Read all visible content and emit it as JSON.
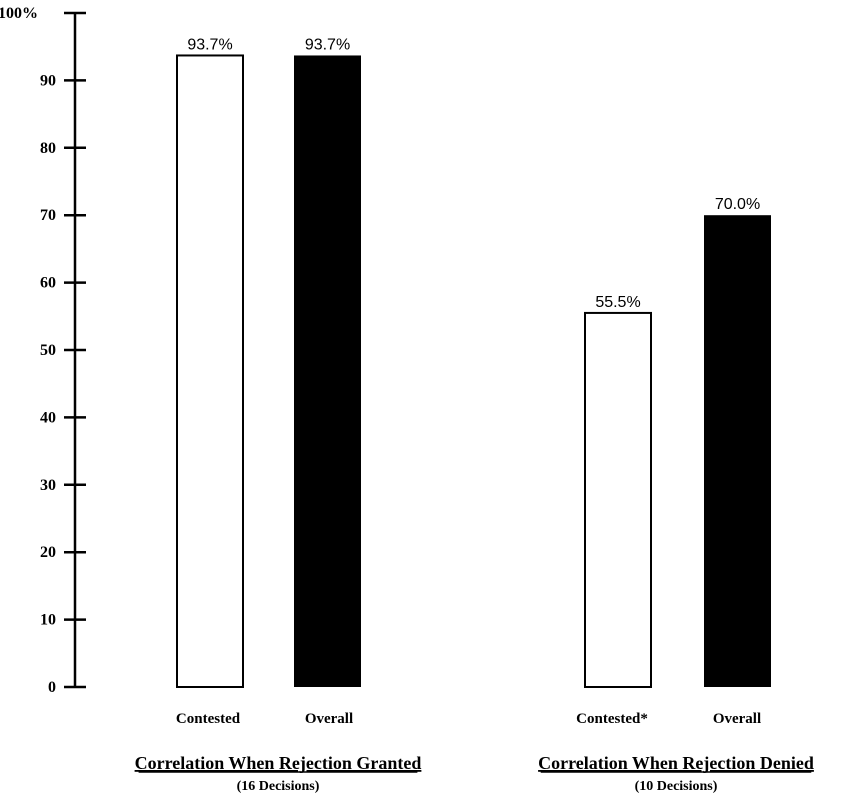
{
  "chart_data": {
    "type": "bar",
    "ylim": [
      0,
      100
    ],
    "y_ticks": [
      {
        "value": 0,
        "label": "0"
      },
      {
        "value": 10,
        "label": "10"
      },
      {
        "value": 20,
        "label": "20"
      },
      {
        "value": 30,
        "label": "30"
      },
      {
        "value": 40,
        "label": "40"
      },
      {
        "value": 50,
        "label": "50"
      },
      {
        "value": 60,
        "label": "60"
      },
      {
        "value": 70,
        "label": "70"
      },
      {
        "value": 80,
        "label": "80"
      },
      {
        "value": 90,
        "label": "90"
      },
      {
        "value": 100,
        "label": "100%"
      }
    ],
    "groups": [
      {
        "title": "Correlation When Rejection Granted",
        "subtitle": "(16 Decisions)",
        "bars": [
          {
            "category": "Contested",
            "value": 93.7,
            "label": "93.7%",
            "fill": "#ffffff"
          },
          {
            "category": "Overall",
            "value": 93.7,
            "label": "93.7%",
            "fill": "#000000"
          }
        ]
      },
      {
        "title": "Correlation When Rejection Denied",
        "subtitle": "(10 Decisions)",
        "bars": [
          {
            "category": "Contested*",
            "value": 55.5,
            "label": "55.5%",
            "fill": "#ffffff"
          },
          {
            "category": "Overall",
            "value": 70.0,
            "label": "70.0%",
            "fill": "#000000"
          }
        ]
      }
    ],
    "grid": false
  }
}
